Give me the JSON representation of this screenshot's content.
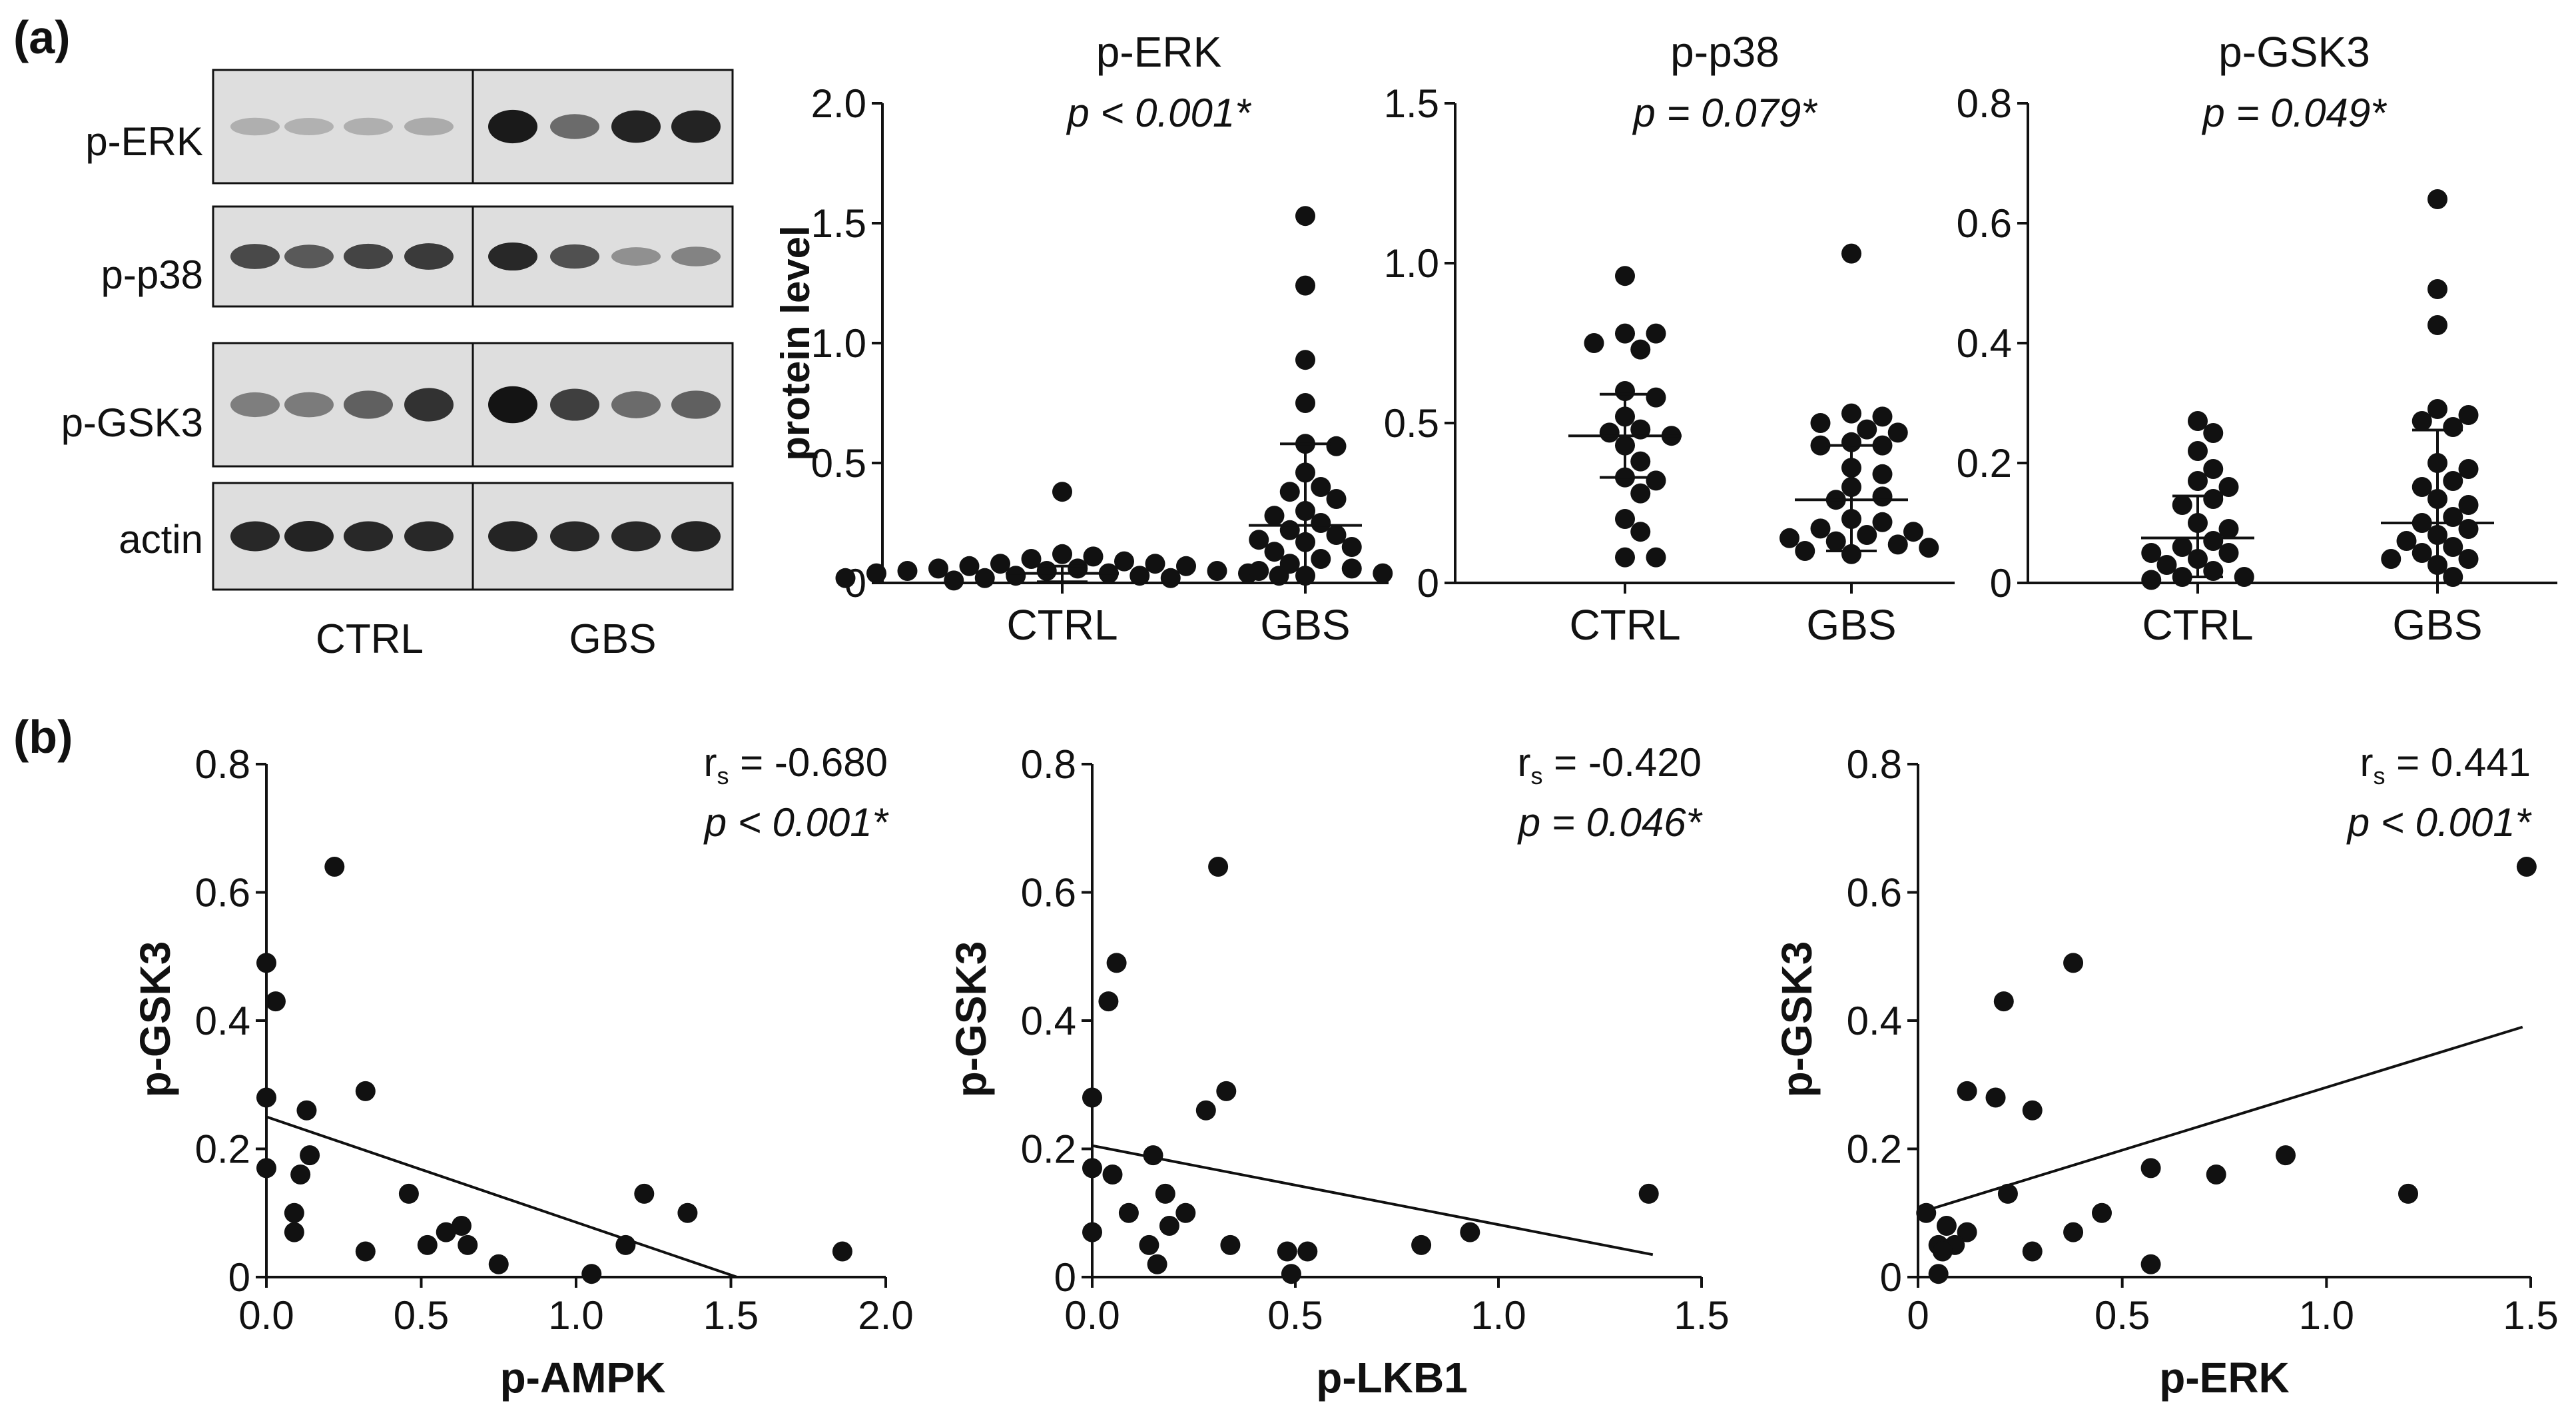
{
  "panel_labels": {
    "a": "(a)",
    "b": "(b)"
  },
  "blot": {
    "rows": [
      "p-ERK",
      "p-p38",
      "p-GSK3",
      "actin"
    ],
    "group_labels": [
      "CTRL",
      "GBS"
    ],
    "band_intensity": [
      [
        0.1,
        0.08,
        0.1,
        0.12,
        0.97,
        0.5,
        0.92,
        0.92
      ],
      [
        0.7,
        0.6,
        0.72,
        0.78,
        0.88,
        0.65,
        0.28,
        0.35
      ],
      [
        0.38,
        0.4,
        0.55,
        0.82,
        1.0,
        0.75,
        0.5,
        0.55
      ],
      [
        0.88,
        0.92,
        0.88,
        0.88,
        0.9,
        0.88,
        0.88,
        0.9
      ]
    ]
  },
  "colors": {
    "ink": "#111111",
    "blot_bg": "#dedede",
    "band": "#141414",
    "white": "#ffffff"
  },
  "chart_data": [
    {
      "type": "scatter",
      "id": "perk",
      "title": "p-ERK",
      "subtitle": "p < 0.001*",
      "ylabel": "protein level",
      "xlabel": "",
      "categories": [
        "CTRL",
        "GBS"
      ],
      "ylim": [
        0,
        2.0
      ],
      "yticks": [
        0,
        0.5,
        1.0,
        1.5,
        2.0
      ],
      "ytick_labels": [
        "0",
        "0.5",
        "1.0",
        "1.5",
        "2.0"
      ],
      "series": [
        {
          "name": "CTRL",
          "mean": 0.04,
          "sd_low": 0.005,
          "sd_high": 0.07,
          "values": [
            0.38,
            0.12,
            0.11,
            0.1,
            0.09,
            0.08,
            0.08,
            0.07,
            0.07,
            0.06,
            0.06,
            0.05,
            0.05,
            0.05,
            0.04,
            0.04,
            0.04,
            0.03,
            0.03,
            0.03,
            0.02,
            0.02,
            0.02,
            0.01
          ]
        },
        {
          "name": "GBS",
          "mean": 0.24,
          "sd_low": -0.1,
          "sd_high": 0.58,
          "values": [
            1.53,
            1.24,
            0.93,
            0.75,
            0.58,
            0.57,
            0.46,
            0.4,
            0.38,
            0.35,
            0.3,
            0.28,
            0.25,
            0.22,
            0.2,
            0.18,
            0.17,
            0.15,
            0.13,
            0.1,
            0.08,
            0.06,
            0.05,
            0.04,
            0.03
          ]
        }
      ]
    },
    {
      "type": "scatter",
      "id": "pp38",
      "title": "p-p38",
      "subtitle": "p = 0.079*",
      "ylabel": "",
      "xlabel": "",
      "categories": [
        "CTRL",
        "GBS"
      ],
      "ylim": [
        0,
        1.5
      ],
      "yticks": [
        0,
        0.5,
        1.0,
        1.5
      ],
      "ytick_labels": [
        "0",
        "0.5",
        "1.0",
        "1.5"
      ],
      "series": [
        {
          "name": "CTRL",
          "mean": 0.46,
          "sd_low": 0.33,
          "sd_high": 0.59,
          "values": [
            0.96,
            0.78,
            0.78,
            0.75,
            0.73,
            0.6,
            0.58,
            0.52,
            0.48,
            0.47,
            0.46,
            0.43,
            0.38,
            0.33,
            0.32,
            0.28,
            0.2,
            0.16,
            0.08,
            0.08
          ]
        },
        {
          "name": "GBS",
          "mean": 0.26,
          "sd_low": 0.1,
          "sd_high": 0.43,
          "values": [
            1.03,
            0.53,
            0.52,
            0.5,
            0.48,
            0.47,
            0.44,
            0.43,
            0.43,
            0.36,
            0.34,
            0.3,
            0.27,
            0.26,
            0.2,
            0.19,
            0.17,
            0.16,
            0.15,
            0.14,
            0.13,
            0.12,
            0.11,
            0.1,
            0.09
          ]
        }
      ]
    },
    {
      "type": "scatter",
      "id": "pgsk3",
      "title": "p-GSK3",
      "subtitle": "p = 0.049*",
      "ylabel": "",
      "xlabel": "",
      "categories": [
        "CTRL",
        "GBS"
      ],
      "ylim": [
        0,
        0.8
      ],
      "yticks": [
        0,
        0.2,
        0.4,
        0.6,
        0.8
      ],
      "ytick_labels": [
        "0",
        "0.2",
        "0.4",
        "0.6",
        "0.8"
      ],
      "series": [
        {
          "name": "CTRL",
          "mean": 0.075,
          "sd_low": 0.01,
          "sd_high": 0.145,
          "values": [
            0.27,
            0.25,
            0.22,
            0.19,
            0.17,
            0.16,
            0.14,
            0.13,
            0.1,
            0.09,
            0.07,
            0.06,
            0.05,
            0.05,
            0.04,
            0.03,
            0.02,
            0.01,
            0.01,
            0.005
          ]
        },
        {
          "name": "GBS",
          "mean": 0.1,
          "sd_low": -0.05,
          "sd_high": 0.255,
          "values": [
            0.64,
            0.49,
            0.43,
            0.29,
            0.28,
            0.27,
            0.26,
            0.2,
            0.19,
            0.17,
            0.16,
            0.14,
            0.13,
            0.11,
            0.1,
            0.09,
            0.08,
            0.07,
            0.06,
            0.05,
            0.04,
            0.04,
            0.03,
            0.01
          ]
        }
      ]
    },
    {
      "type": "scatter",
      "id": "ampk",
      "xlabel": "p-AMPK",
      "ylabel": "p-GSK3",
      "stat_prefix": "r",
      "stat_sub": "s",
      "stat_value": " = -0.680",
      "pvalue": "p < 0.001*",
      "xlim": [
        0,
        2.0
      ],
      "ylim": [
        0,
        0.8
      ],
      "xticks": [
        0,
        0.5,
        1.0,
        1.5,
        2.0
      ],
      "xtick_labels": [
        "0.0",
        "0.5",
        "1.0",
        "1.5",
        "2.0"
      ],
      "yticks": [
        0,
        0.2,
        0.4,
        0.6,
        0.8
      ],
      "ytick_labels": [
        "0",
        "0.2",
        "0.4",
        "0.6",
        "0.8"
      ],
      "fit": {
        "x": [
          0,
          1.52
        ],
        "y": [
          0.25,
          0.0
        ]
      },
      "points": [
        [
          0.0,
          0.49
        ],
        [
          0.03,
          0.43
        ],
        [
          0.0,
          0.28
        ],
        [
          0.0,
          0.17
        ],
        [
          0.22,
          0.64
        ],
        [
          0.32,
          0.29
        ],
        [
          0.13,
          0.26
        ],
        [
          0.14,
          0.19
        ],
        [
          0.11,
          0.16
        ],
        [
          0.09,
          0.1
        ],
        [
          0.09,
          0.07
        ],
        [
          0.46,
          0.13
        ],
        [
          0.32,
          0.04
        ],
        [
          0.52,
          0.05
        ],
        [
          0.58,
          0.07
        ],
        [
          0.63,
          0.08
        ],
        [
          0.65,
          0.05
        ],
        [
          0.75,
          0.02
        ],
        [
          1.05,
          0.005
        ],
        [
          1.16,
          0.05
        ],
        [
          1.22,
          0.13
        ],
        [
          1.36,
          0.1
        ],
        [
          1.86,
          0.04
        ]
      ]
    },
    {
      "type": "scatter",
      "id": "lkb1",
      "xlabel": "p-LKB1",
      "ylabel": "p-GSK3",
      "stat_prefix": "r",
      "stat_sub": "s",
      "stat_value": " = -0.420",
      "pvalue": "p = 0.046*",
      "xlim": [
        0,
        1.5
      ],
      "ylim": [
        0,
        0.8
      ],
      "xticks": [
        0,
        0.5,
        1.0,
        1.5
      ],
      "xtick_labels": [
        "0.0",
        "0.5",
        "1.0",
        "1.5"
      ],
      "yticks": [
        0,
        0.2,
        0.4,
        0.6,
        0.8
      ],
      "ytick_labels": [
        "0",
        "0.2",
        "0.4",
        "0.6",
        "0.8"
      ],
      "fit": {
        "x": [
          0,
          1.38
        ],
        "y": [
          0.205,
          0.035
        ]
      },
      "points": [
        [
          0.06,
          0.49
        ],
        [
          0.04,
          0.43
        ],
        [
          0.0,
          0.28
        ],
        [
          0.0,
          0.17
        ],
        [
          0.0,
          0.07
        ],
        [
          0.05,
          0.16
        ],
        [
          0.31,
          0.64
        ],
        [
          0.33,
          0.29
        ],
        [
          0.28,
          0.26
        ],
        [
          0.15,
          0.19
        ],
        [
          0.18,
          0.13
        ],
        [
          0.09,
          0.1
        ],
        [
          0.23,
          0.1
        ],
        [
          0.19,
          0.08
        ],
        [
          0.14,
          0.05
        ],
        [
          0.16,
          0.02
        ],
        [
          0.34,
          0.05
        ],
        [
          0.48,
          0.04
        ],
        [
          0.53,
          0.04
        ],
        [
          0.49,
          0.005
        ],
        [
          0.81,
          0.05
        ],
        [
          0.93,
          0.07
        ],
        [
          1.37,
          0.13
        ]
      ]
    },
    {
      "type": "scatter",
      "id": "erk",
      "xlabel": "p-ERK",
      "ylabel": "p-GSK3",
      "stat_prefix": "r",
      "stat_sub": "s",
      "stat_value": " = 0.441",
      "pvalue": "p < 0.001*",
      "xlim": [
        0,
        1.5
      ],
      "ylim": [
        0,
        0.8
      ],
      "xticks": [
        0,
        0.5,
        1.0,
        1.5
      ],
      "xtick_labels": [
        "0",
        "0.5",
        "1.0",
        "1.5"
      ],
      "yticks": [
        0,
        0.2,
        0.4,
        0.6,
        0.8
      ],
      "ytick_labels": [
        "0",
        "0.2",
        "0.4",
        "0.6",
        "0.8"
      ],
      "fit": {
        "x": [
          0,
          1.48
        ],
        "y": [
          0.1,
          0.39
        ]
      },
      "points": [
        [
          1.49,
          0.64
        ],
        [
          0.38,
          0.49
        ],
        [
          0.21,
          0.43
        ],
        [
          0.12,
          0.29
        ],
        [
          0.19,
          0.28
        ],
        [
          0.28,
          0.26
        ],
        [
          0.02,
          0.1
        ],
        [
          0.07,
          0.08
        ],
        [
          0.12,
          0.07
        ],
        [
          0.09,
          0.05
        ],
        [
          0.05,
          0.05
        ],
        [
          0.06,
          0.04
        ],
        [
          0.05,
          0.005
        ],
        [
          0.22,
          0.13
        ],
        [
          0.28,
          0.04
        ],
        [
          0.38,
          0.07
        ],
        [
          0.45,
          0.1
        ],
        [
          0.57,
          0.17
        ],
        [
          0.57,
          0.02
        ],
        [
          0.73,
          0.16
        ],
        [
          0.9,
          0.19
        ],
        [
          1.2,
          0.13
        ]
      ]
    }
  ]
}
